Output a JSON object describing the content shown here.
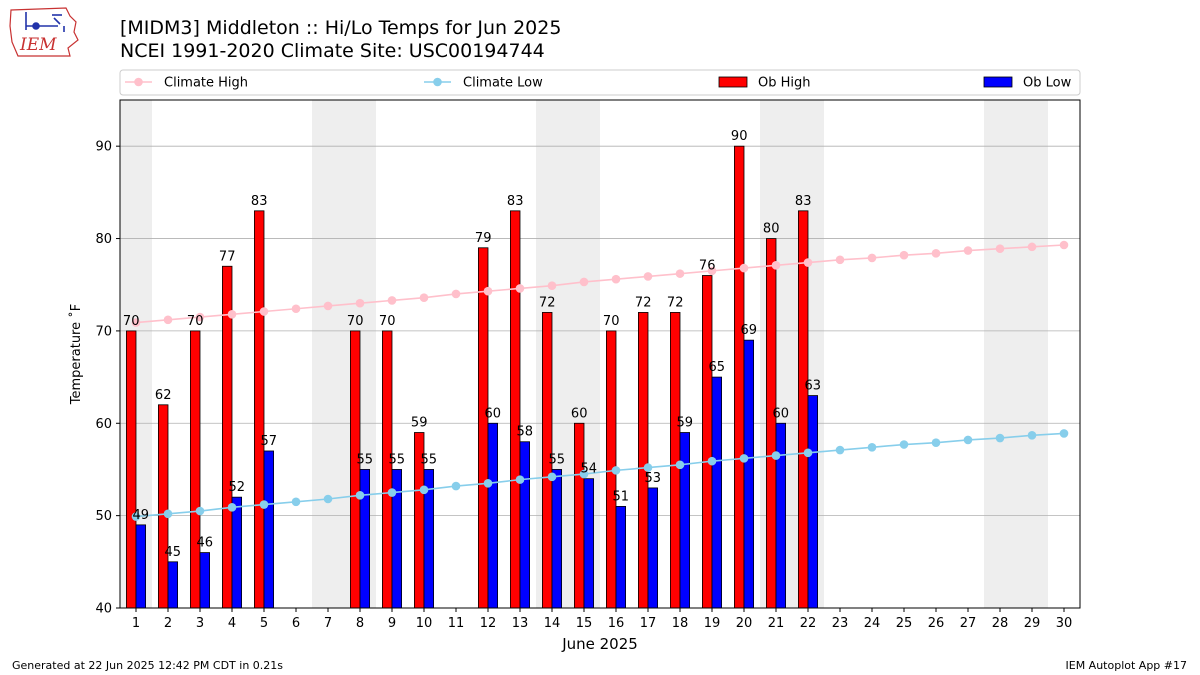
{
  "header": {
    "title_line1": "[MIDM3] Middleton :: Hi/Lo Temps for Jun 2025",
    "title_line2": "NCEI 1991-2020 Climate Site: USC00194744",
    "logo_text": "IEM"
  },
  "footer": {
    "generated": "Generated at 22 Jun 2025 12:42 PM CDT in 0.21s",
    "app": "IEM Autoplot App #17"
  },
  "colors": {
    "climate_high": "#ffc0cb",
    "climate_low": "#87ceeb",
    "ob_high": "#ff0000",
    "ob_low": "#0000ff",
    "weekend_band": "#eeeeee",
    "grid": "#b0b0b0"
  },
  "chart_data": {
    "type": "bar",
    "xlabel": "June 2025",
    "ylabel": "Temperature $^\\circ$F",
    "ylabel_display": "Temperature ˚F",
    "ylim": [
      40,
      95
    ],
    "xlim": [
      0.5,
      30.5
    ],
    "yticks": [
      40,
      50,
      60,
      70,
      80,
      90
    ],
    "grid": "horizontal",
    "legend_position": "top, above plot (4 columns)",
    "days": [
      1,
      2,
      3,
      4,
      5,
      6,
      7,
      8,
      9,
      10,
      11,
      12,
      13,
      14,
      15,
      16,
      17,
      18,
      19,
      20,
      21,
      22,
      23,
      24,
      25,
      26,
      27,
      28,
      29,
      30
    ],
    "weekend_days": [
      1,
      7,
      8,
      14,
      15,
      21,
      22,
      28,
      29
    ],
    "series": [
      {
        "name": "Climate High",
        "kind": "line",
        "values": [
          70.9,
          71.2,
          71.5,
          71.8,
          72.1,
          72.4,
          72.7,
          73.0,
          73.3,
          73.6,
          74.0,
          74.3,
          74.6,
          74.9,
          75.3,
          75.6,
          75.9,
          76.2,
          76.5,
          76.8,
          77.1,
          77.4,
          77.7,
          77.9,
          78.2,
          78.4,
          78.7,
          78.9,
          79.1,
          79.3
        ]
      },
      {
        "name": "Climate Low",
        "kind": "line",
        "values": [
          49.9,
          50.2,
          50.5,
          50.9,
          51.2,
          51.5,
          51.8,
          52.2,
          52.5,
          52.8,
          53.2,
          53.5,
          53.9,
          54.2,
          54.5,
          54.9,
          55.2,
          55.5,
          55.9,
          56.2,
          56.5,
          56.8,
          57.1,
          57.4,
          57.7,
          57.9,
          58.2,
          58.4,
          58.7,
          58.9
        ]
      },
      {
        "name": "Ob High",
        "kind": "bar",
        "values": [
          70,
          62,
          70,
          77,
          83,
          null,
          null,
          70,
          70,
          59,
          null,
          79,
          83,
          72,
          60,
          70,
          72,
          72,
          76,
          90,
          80,
          83,
          null,
          null,
          null,
          null,
          null,
          null,
          null,
          null
        ]
      },
      {
        "name": "Ob Low",
        "kind": "bar",
        "values": [
          49,
          45,
          46,
          52,
          57,
          null,
          null,
          55,
          55,
          55,
          null,
          60,
          58,
          55,
          54,
          51,
          53,
          59,
          65,
          69,
          60,
          63,
          null,
          null,
          null,
          null,
          null,
          null,
          null,
          null
        ]
      }
    ]
  }
}
